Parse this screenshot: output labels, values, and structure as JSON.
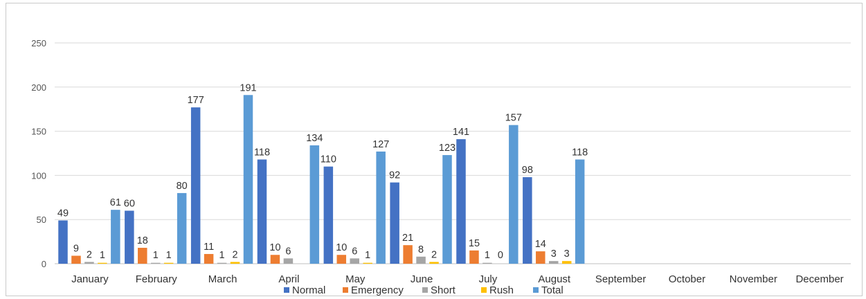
{
  "chart_data": {
    "type": "bar",
    "title": "",
    "xlabel": "",
    "ylabel": "",
    "ylim": [
      0,
      250
    ],
    "yticks": [
      0,
      50,
      100,
      150,
      200,
      250
    ],
    "grid": true,
    "legend_position": "bottom",
    "categories": [
      "January",
      "February",
      "March",
      "April",
      "May",
      "June",
      "July",
      "August",
      "September",
      "October",
      "November",
      "December"
    ],
    "series": [
      {
        "name": "Normal",
        "color": "#4472C4",
        "values": [
          49,
          60,
          177,
          118,
          110,
          92,
          141,
          98,
          null,
          null,
          null,
          null
        ]
      },
      {
        "name": "Emergency",
        "color": "#ED7D31",
        "values": [
          9,
          18,
          11,
          10,
          10,
          21,
          15,
          14,
          null,
          null,
          null,
          null
        ]
      },
      {
        "name": "Short",
        "color": "#A5A5A5",
        "values": [
          2,
          1,
          1,
          6,
          6,
          8,
          1,
          3,
          null,
          null,
          null,
          null
        ]
      },
      {
        "name": "Rush",
        "color": "#FFC000",
        "values": [
          1,
          1,
          2,
          0,
          1,
          2,
          0,
          3,
          null,
          null,
          null,
          null
        ]
      },
      {
        "name": "Total",
        "color": "#5B9BD5",
        "values": [
          61,
          80,
          191,
          134,
          127,
          123,
          157,
          118,
          null,
          null,
          null,
          null
        ]
      }
    ],
    "data_labels": [
      [
        "49",
        "9",
        "2",
        "1",
        "61"
      ],
      [
        "60",
        "18",
        "1",
        "1",
        "80"
      ],
      [
        "177",
        "11",
        "1",
        "2",
        "191"
      ],
      [
        "118",
        "10",
        "6",
        "",
        "134"
      ],
      [
        "110",
        "10",
        "6",
        "1",
        "127"
      ],
      [
        "92",
        "21",
        "8",
        "2",
        "123"
      ],
      [
        "141",
        "15",
        "1",
        "0",
        "157"
      ],
      [
        "98",
        "14",
        "3",
        "3",
        "118"
      ]
    ]
  }
}
